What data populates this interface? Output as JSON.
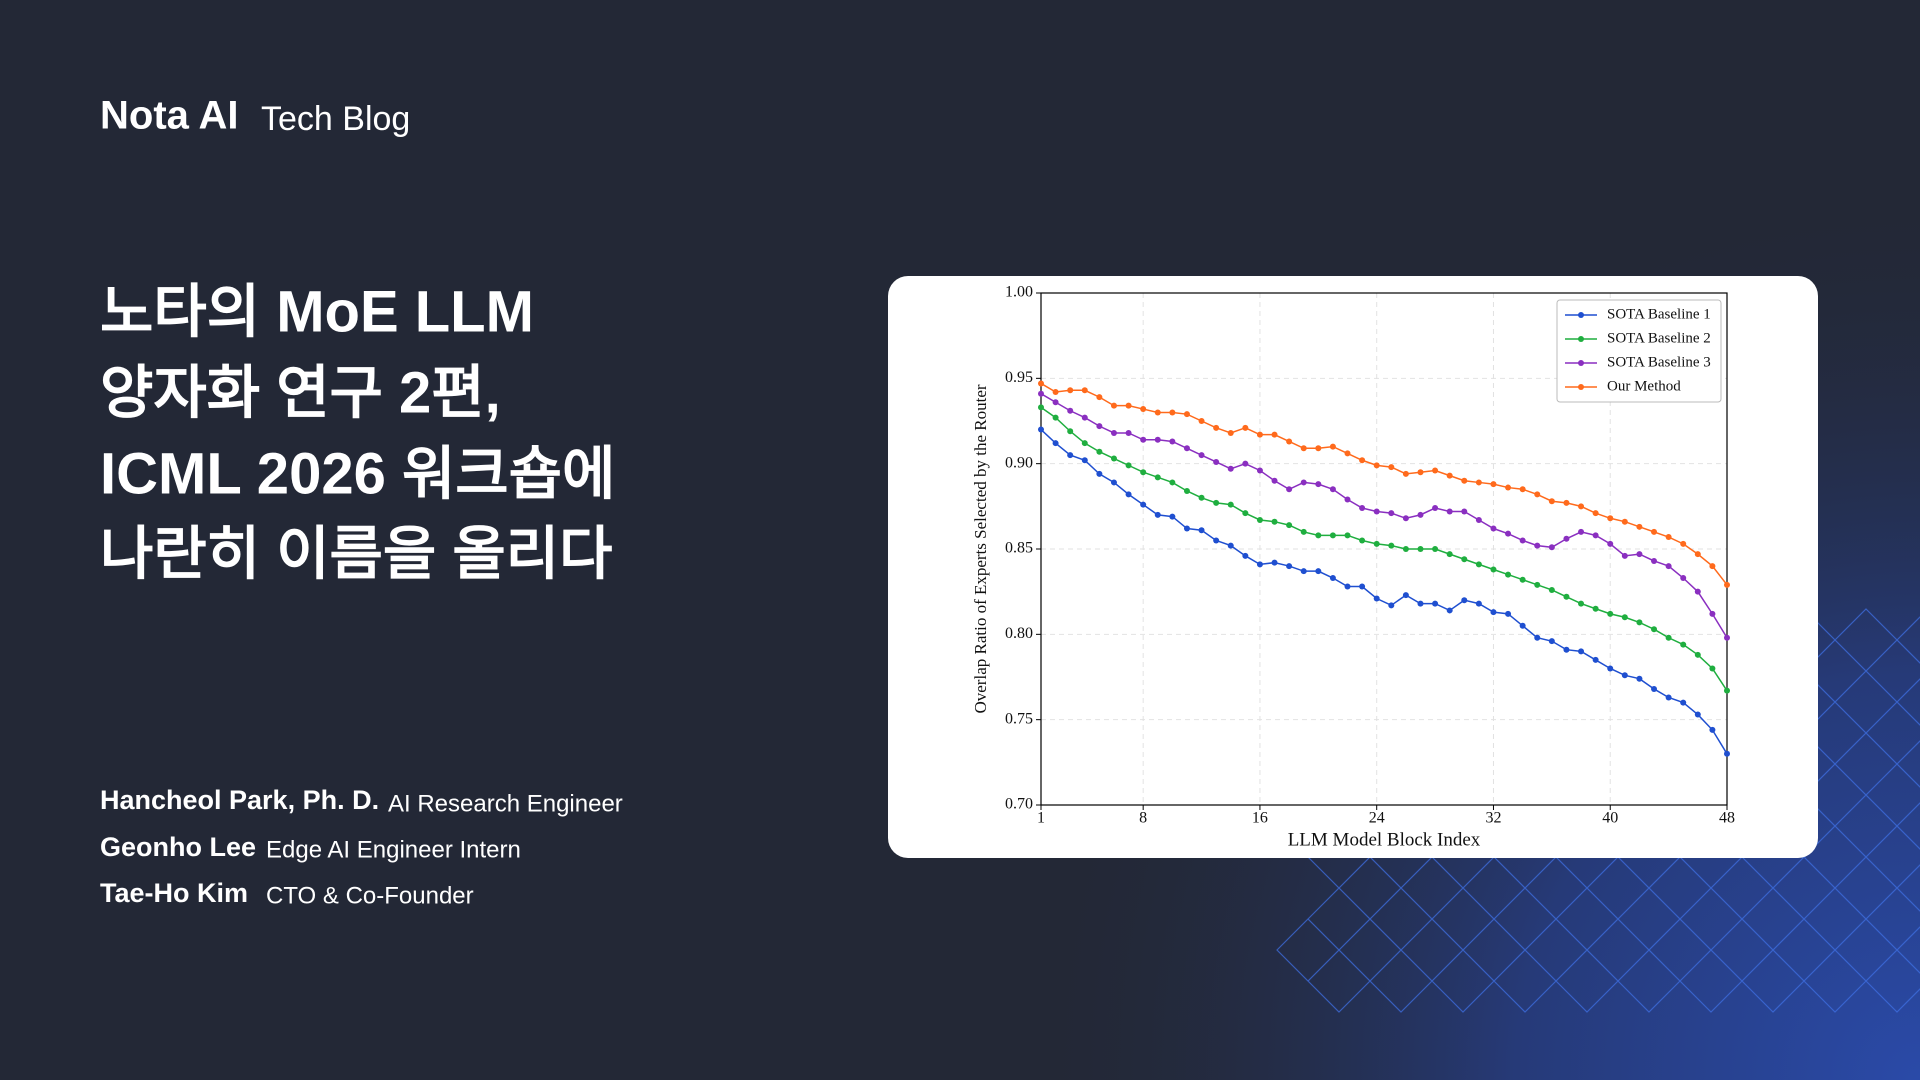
{
  "header": {
    "logo": "Nota AI",
    "section": "Tech Blog"
  },
  "title_lines": [
    "노타의 MoE LLM",
    "양자화 연구 2편,",
    "ICML 2026 워크숍에",
    "나란히 이름을 올리다"
  ],
  "authors": [
    {
      "name": "Hancheol Park, Ph. D.",
      "role": "AI Research Engineer"
    },
    {
      "name": "Geonho Lee",
      "role": "Edge AI Engineer Intern"
    },
    {
      "name": "Tae-Ho Kim",
      "role": "CTO & Co-Founder"
    }
  ],
  "chart_data": {
    "type": "line",
    "x_label": "LLM Model Block Index",
    "y_label": "Overlap Ratio of Experts Selected by the Router",
    "x": [
      1,
      2,
      3,
      4,
      5,
      6,
      7,
      8,
      9,
      10,
      11,
      12,
      13,
      14,
      15,
      16,
      17,
      18,
      19,
      20,
      21,
      22,
      23,
      24,
      25,
      26,
      27,
      28,
      29,
      30,
      31,
      32,
      33,
      34,
      35,
      36,
      37,
      38,
      39,
      40,
      41,
      42,
      43,
      44,
      45,
      46,
      47,
      48
    ],
    "xlim": [
      1,
      48
    ],
    "xticks": [
      1,
      8,
      16,
      24,
      32,
      40,
      48
    ],
    "ylim": [
      0.7,
      1.0
    ],
    "yticks": [
      {
        "value": 0.7,
        "label": "0.70"
      },
      0.75,
      {
        "value": 0.8,
        "label": "0.80"
      },
      0.85,
      {
        "value": 0.9,
        "label": "0.90"
      },
      0.95,
      {
        "value": 1.0,
        "label": "1.00"
      }
    ],
    "grid": true,
    "legend": "upper right",
    "marker": "circle",
    "series": [
      {
        "name": "SOTA Baseline 1",
        "color": "#1f4fd0",
        "values": [
          0.92,
          0.912,
          0.905,
          0.902,
          0.894,
          0.889,
          0.882,
          0.876,
          0.87,
          0.869,
          0.862,
          0.861,
          0.855,
          0.852,
          0.846,
          0.841,
          0.842,
          0.84,
          0.837,
          0.837,
          0.833,
          0.828,
          0.828,
          0.821,
          0.817,
          0.823,
          0.818,
          0.818,
          0.814,
          0.82,
          0.818,
          0.813,
          0.812,
          0.805,
          0.798,
          0.796,
          0.791,
          0.79,
          0.785,
          0.78,
          0.776,
          0.774,
          0.768,
          0.763,
          0.76,
          0.753,
          0.744,
          0.73
        ]
      },
      {
        "name": "SOTA Baseline 2",
        "color": "#1fae3f",
        "values": [
          0.933,
          0.927,
          0.919,
          0.912,
          0.907,
          0.903,
          0.899,
          0.895,
          0.892,
          0.889,
          0.884,
          0.88,
          0.877,
          0.876,
          0.871,
          0.867,
          0.866,
          0.864,
          0.86,
          0.858,
          0.858,
          0.858,
          0.855,
          0.853,
          0.852,
          0.85,
          0.85,
          0.85,
          0.847,
          0.844,
          0.841,
          0.838,
          0.835,
          0.832,
          0.829,
          0.826,
          0.822,
          0.818,
          0.815,
          0.812,
          0.81,
          0.807,
          0.803,
          0.798,
          0.794,
          0.788,
          0.78,
          0.767
        ]
      },
      {
        "name": "SOTA Baseline 3",
        "color": "#8a2fc0",
        "values": [
          0.941,
          0.936,
          0.931,
          0.927,
          0.922,
          0.918,
          0.918,
          0.914,
          0.914,
          0.913,
          0.909,
          0.905,
          0.901,
          0.897,
          0.9,
          0.896,
          0.89,
          0.885,
          0.889,
          0.888,
          0.885,
          0.879,
          0.874,
          0.872,
          0.871,
          0.868,
          0.87,
          0.874,
          0.872,
          0.872,
          0.867,
          0.862,
          0.859,
          0.855,
          0.852,
          0.851,
          0.856,
          0.86,
          0.858,
          0.853,
          0.846,
          0.847,
          0.843,
          0.84,
          0.833,
          0.825,
          0.812,
          0.798
        ]
      },
      {
        "name": "Our Method",
        "color": "#ff6a1c",
        "values": [
          0.947,
          0.942,
          0.943,
          0.943,
          0.939,
          0.934,
          0.934,
          0.932,
          0.93,
          0.93,
          0.929,
          0.925,
          0.921,
          0.918,
          0.921,
          0.917,
          0.917,
          0.913,
          0.909,
          0.909,
          0.91,
          0.906,
          0.902,
          0.899,
          0.898,
          0.894,
          0.895,
          0.896,
          0.893,
          0.89,
          0.889,
          0.888,
          0.886,
          0.885,
          0.882,
          0.878,
          0.877,
          0.875,
          0.871,
          0.868,
          0.866,
          0.863,
          0.86,
          0.857,
          0.853,
          0.847,
          0.84,
          0.829
        ]
      }
    ]
  }
}
